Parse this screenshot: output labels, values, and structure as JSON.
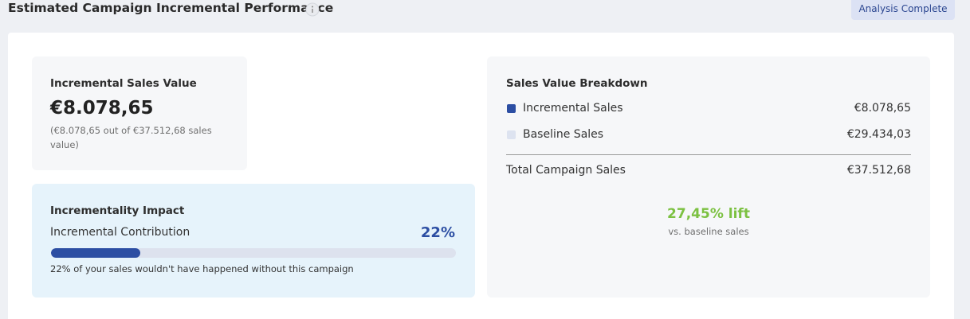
{
  "header": {
    "title": "Estimated Campaign Incremental Performance",
    "status": "Analysis Complete"
  },
  "sales_value": {
    "title": "Incremental Sales Value",
    "value": "€8.078,65",
    "note": "(€8.078,65 out of €37.512,68 sales value)"
  },
  "impact": {
    "title": "Incrementality Impact",
    "label": "Incremental Contribution",
    "percent": 22,
    "percent_label": "22%",
    "caption": "22% of your sales wouldn't have happened without this campaign"
  },
  "breakdown": {
    "title": "Sales Value Breakdown",
    "rows": [
      {
        "label": "Incremental Sales",
        "value": "€8.078,65",
        "color": "#2c4ea3"
      },
      {
        "label": "Baseline Sales",
        "value": "€29.434,03",
        "color": "#dde3f0"
      }
    ],
    "total": {
      "label": "Total Campaign Sales",
      "value": "€37.512,68"
    },
    "lift": "27,45% lift",
    "lift_note": "vs. baseline sales"
  }
}
